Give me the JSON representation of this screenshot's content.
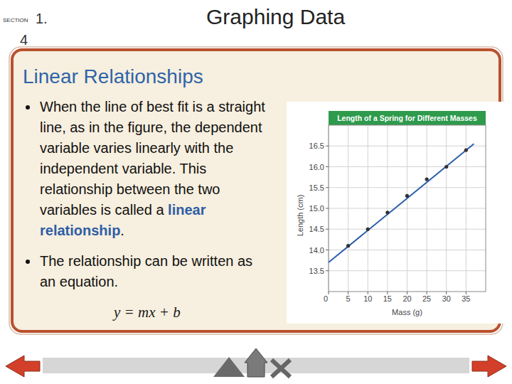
{
  "header": {
    "section_label": "SECTION",
    "section_number": "1.",
    "section_sub": "4",
    "title": "Graphing Data"
  },
  "panel": {
    "heading": "Linear Relationships",
    "bullets": [
      {
        "segments": [
          {
            "text": "When the line of best fit is a straight line, as in the figure, the dependent variable varies linearly with the independent variable. This relationship between the two variables is called a ",
            "bold": false
          },
          {
            "text": "linear relationship",
            "bold": true
          },
          {
            "text": ".",
            "bold": false
          }
        ]
      },
      {
        "segments": [
          {
            "text": "The relationship can be written as an equation.",
            "bold": false
          }
        ]
      }
    ],
    "equation": "y = mx + b"
  },
  "chart_data": {
    "type": "scatter",
    "title": "Length of a Spring for Different Masses",
    "x_label": "Mass (g)",
    "y_label": "Length (cm)",
    "xlim": [
      0,
      40
    ],
    "xticks": [
      0,
      5,
      10,
      15,
      20,
      25,
      30,
      35
    ],
    "ylim": [
      13,
      17
    ],
    "yticks": [
      13.5,
      {
        "value": 14,
        "label": "14.0"
      },
      14.5,
      {
        "value": 15,
        "label": "15.0"
      },
      15.5,
      {
        "value": 16,
        "label": "16.0"
      },
      16.5
    ],
    "grid": true,
    "series": [
      {
        "type": "scatter",
        "color": "#333333",
        "marker": "circle",
        "x": [
          5,
          10,
          15,
          20,
          25,
          30,
          35
        ],
        "values": [
          14.1,
          14.5,
          14.9,
          15.3,
          15.7,
          16.0,
          16.4
        ]
      },
      {
        "type": "line",
        "color": "#2b5fab",
        "line_style": "solid",
        "x": [
          0,
          37
        ],
        "values": [
          13.7,
          16.55
        ]
      }
    ]
  }
}
